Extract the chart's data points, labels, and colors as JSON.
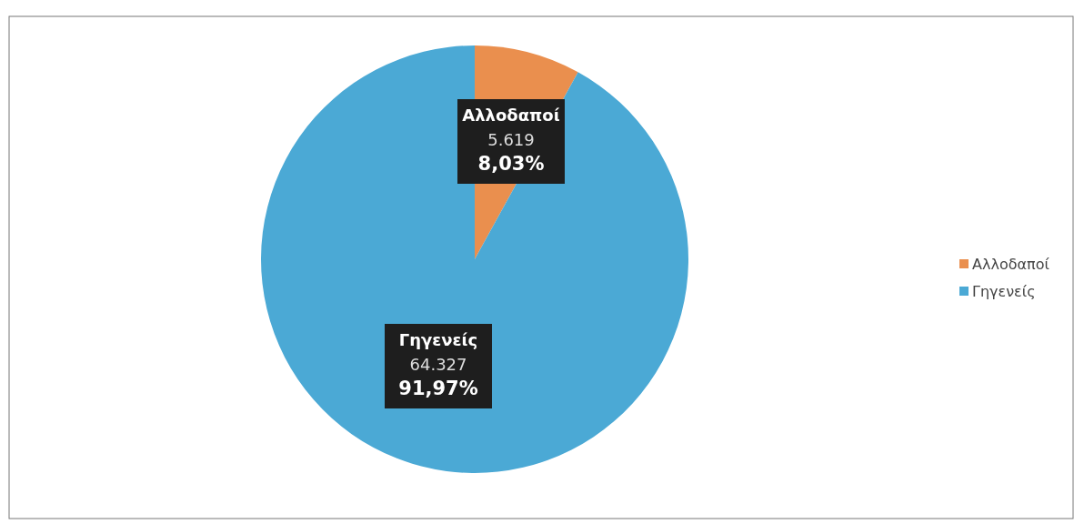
{
  "chart_data": {
    "type": "pie",
    "categories": [
      "Αλλοδαποί",
      "Γηγενείς"
    ],
    "values": [
      5619,
      64327
    ],
    "colors": [
      "#ea8f4e",
      "#4ba9d5"
    ],
    "value_labels": [
      "5.619\n8,03%",
      "64.327\n91,97%"
    ],
    "legend": "right"
  }
}
